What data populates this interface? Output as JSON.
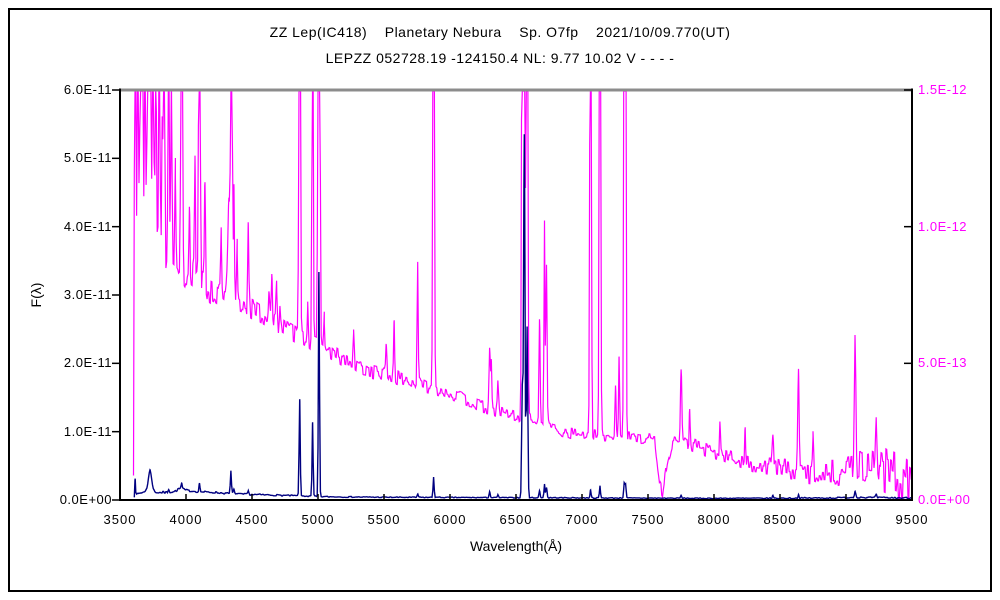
{
  "figure": {
    "title_line1": "ZZ Lep(IC418)    Planetary Nebura    Sp. O7fp    2021/10/09.770(UT)",
    "title_line2": "LEPZZ 052728.19 -124150.4 NL: 9.77 10.02 V - - - -"
  },
  "chart_data": {
    "type": "line",
    "title": "ZZ Lep(IC418) Planetary Nebura Sp. O7fp 2021/10/09.770(UT)",
    "subtitle": "LEPZZ 052728.19 -124150.4 NL: 9.77 10.02 V - - - -",
    "xlabel": "Wavelength(Å)",
    "ylabel_left": "F(λ)",
    "grid": false,
    "legend": "none",
    "axes": {
      "x": {
        "min": 3500,
        "max": 9500,
        "tick_values": [
          3500,
          4000,
          4500,
          5000,
          5500,
          6000,
          6500,
          7000,
          7500,
          8000,
          8500,
          9000,
          9500
        ],
        "tick_labels": [
          "3500",
          "4000",
          "4500",
          "5000",
          "5500",
          "6000",
          "6500",
          "7000",
          "7500",
          "8000",
          "8500",
          "9000",
          "9500"
        ]
      },
      "y_left": {
        "min": 0,
        "max": 6e-11,
        "unit": "1e-11",
        "color": "#000000",
        "tick_values": [
          6,
          5,
          4,
          3,
          2,
          1,
          0
        ],
        "tick_labels": [
          "6.0E-11",
          "5.0E-11",
          "4.0E-11",
          "3.0E-11",
          "2.0E-11",
          "1.0E-11",
          "0.0E+00"
        ]
      },
      "y_right": {
        "min": 0,
        "max": 1.5e-12,
        "unit": "1e-12",
        "color": "#ff00ff",
        "tick_values": [
          1.5,
          1.0,
          0.5,
          0
        ],
        "tick_labels": [
          "1.5E-12",
          "1.0E-12",
          "5.0E-13",
          "0.0E+00"
        ]
      }
    },
    "series": [
      {
        "name": "spectrum-right-axis-magenta",
        "color": "#ff00ff",
        "axis": "right",
        "axis_max": 1.5,
        "seed": 13,
        "range": [
          3602,
          9505
        ],
        "continuum": [
          [
            3602,
            0.05
          ],
          [
            3620,
            1.02
          ],
          [
            3700,
            1.0
          ],
          [
            3800,
            0.92
          ],
          [
            3900,
            0.88
          ],
          [
            4000,
            0.83
          ],
          [
            4150,
            0.78
          ],
          [
            4300,
            0.74
          ],
          [
            4450,
            0.71
          ],
          [
            4600,
            0.67
          ],
          [
            4750,
            0.63
          ],
          [
            4900,
            0.59
          ],
          [
            5050,
            0.55
          ],
          [
            5200,
            0.51
          ],
          [
            5350,
            0.48
          ],
          [
            5500,
            0.46
          ],
          [
            5650,
            0.44
          ],
          [
            5800,
            0.42
          ],
          [
            5950,
            0.4
          ],
          [
            6100,
            0.37
          ],
          [
            6250,
            0.34
          ],
          [
            6400,
            0.32
          ],
          [
            6550,
            0.3
          ],
          [
            6700,
            0.285
          ],
          [
            6850,
            0.25
          ],
          [
            7000,
            0.24
          ],
          [
            7150,
            0.235
          ],
          [
            7300,
            0.23
          ],
          [
            7450,
            0.228
          ],
          [
            7550,
            0.225
          ],
          [
            7585,
            0.06
          ],
          [
            7615,
            0.03
          ],
          [
            7650,
            0.15
          ],
          [
            7690,
            0.22
          ],
          [
            7850,
            0.2
          ],
          [
            8000,
            0.17
          ],
          [
            8150,
            0.15
          ],
          [
            8300,
            0.13
          ],
          [
            8450,
            0.12
          ],
          [
            8600,
            0.11
          ],
          [
            8750,
            0.1
          ],
          [
            8900,
            0.1
          ],
          [
            9050,
            0.115
          ],
          [
            9200,
            0.13
          ],
          [
            9320,
            0.1
          ],
          [
            9420,
            0.08
          ],
          [
            9505,
            0.05
          ]
        ],
        "noise": [
          [
            3605,
            0.09
          ],
          [
            3900,
            0.07
          ],
          [
            4300,
            0.05
          ],
          [
            4800,
            0.035
          ],
          [
            5300,
            0.03
          ],
          [
            5900,
            0.025
          ],
          [
            6500,
            0.022
          ],
          [
            7200,
            0.02
          ],
          [
            7800,
            0.025
          ],
          [
            8300,
            0.03
          ],
          [
            8800,
            0.045
          ],
          [
            9100,
            0.06
          ],
          [
            9350,
            0.09
          ],
          [
            9505,
            0.11
          ]
        ],
        "lines": [
          [
            3614,
            2.5,
            4
          ],
          [
            3636,
            1.6,
            4
          ],
          [
            3657,
            2.0,
            4
          ],
          [
            3670,
            1.3,
            4
          ],
          [
            3690,
            0.9,
            4
          ],
          [
            3712,
            2.0,
            4
          ],
          [
            3728,
            2.6,
            5
          ],
          [
            3750,
            1.9,
            4
          ],
          [
            3771,
            1.0,
            4
          ],
          [
            3798,
            1.8,
            4
          ],
          [
            3820,
            0.55,
            4
          ],
          [
            3835,
            1.7,
            4
          ],
          [
            3869,
            2.2,
            4
          ],
          [
            3889,
            0.75,
            4
          ],
          [
            3920,
            0.35,
            4
          ],
          [
            3967,
            2.2,
            5
          ],
          [
            4026,
            0.3,
            4
          ],
          [
            4068,
            0.5,
            4
          ],
          [
            4102,
            2.2,
            5
          ],
          [
            4144,
            0.35,
            4
          ],
          [
            4267,
            0.2,
            4
          ],
          [
            4325,
            0.35,
            8
          ],
          [
            4344,
            1.9,
            5
          ],
          [
            4363,
            0.4,
            4
          ],
          [
            4388,
            0.2,
            4
          ],
          [
            4471,
            0.35,
            4
          ],
          [
            4630,
            0.12,
            5
          ],
          [
            4650,
            0.15,
            4
          ],
          [
            4686,
            0.12,
            4
          ],
          [
            4711,
            0.1,
            4
          ],
          [
            4861,
            3.0,
            5
          ],
          [
            4922,
            0.15,
            4
          ],
          [
            4959,
            2.4,
            4
          ],
          [
            5007,
            3.4,
            6
          ],
          [
            5048,
            0.12,
            4
          ],
          [
            5270,
            0.1,
            4
          ],
          [
            5518,
            0.1,
            4
          ],
          [
            5577,
            0.2,
            4
          ],
          [
            5755,
            0.42,
            4
          ],
          [
            5876,
            2.6,
            5
          ],
          [
            6300,
            0.2,
            4
          ],
          [
            6312,
            0.18,
            4
          ],
          [
            6363,
            0.12,
            4
          ],
          [
            6548,
            2.2,
            5
          ],
          [
            6563,
            3.6,
            5
          ],
          [
            6584,
            2.6,
            5
          ],
          [
            6678,
            0.36,
            4
          ],
          [
            6716,
            0.75,
            4
          ],
          [
            6731,
            0.6,
            4
          ],
          [
            7065,
            2.8,
            5
          ],
          [
            7136,
            2.6,
            5
          ],
          [
            7254,
            0.2,
            4
          ],
          [
            7281,
            0.3,
            4
          ],
          [
            7320,
            2.3,
            4
          ],
          [
            7330,
            2.1,
            4
          ],
          [
            7751,
            0.27,
            5
          ],
          [
            7816,
            0.12,
            4
          ],
          [
            8045,
            0.12,
            4
          ],
          [
            8236,
            0.1,
            4
          ],
          [
            8446,
            0.14,
            5
          ],
          [
            8640,
            0.35,
            5
          ],
          [
            8750,
            0.12,
            4
          ],
          [
            9069,
            0.52,
            6
          ],
          [
            9229,
            0.2,
            6
          ]
        ]
      },
      {
        "name": "spectrum-left-axis-navy",
        "color": "#000080",
        "axis": "left",
        "axis_max": 6,
        "seed": 7,
        "range": [
          3608,
          9505
        ],
        "continuum": [
          [
            3608,
            0.04
          ],
          [
            3640,
            0.09
          ],
          [
            3680,
            0.12
          ],
          [
            3705,
            0.16
          ],
          [
            3730,
            0.24
          ],
          [
            3750,
            0.16
          ],
          [
            3775,
            0.11
          ],
          [
            3850,
            0.11
          ],
          [
            3910,
            0.12
          ],
          [
            3955,
            0.17
          ],
          [
            4010,
            0.14
          ],
          [
            4100,
            0.12
          ],
          [
            4220,
            0.11
          ],
          [
            4360,
            0.09
          ],
          [
            4500,
            0.08
          ],
          [
            4700,
            0.07
          ],
          [
            4880,
            0.06
          ],
          [
            5000,
            0.05
          ],
          [
            5200,
            0.045
          ],
          [
            5500,
            0.04
          ],
          [
            5900,
            0.038
          ],
          [
            6300,
            0.035
          ],
          [
            6700,
            0.034
          ],
          [
            7100,
            0.03
          ],
          [
            7500,
            0.028
          ],
          [
            7900,
            0.025
          ],
          [
            8400,
            0.025
          ],
          [
            8900,
            0.03
          ],
          [
            9100,
            0.04
          ],
          [
            9300,
            0.032
          ],
          [
            9505,
            0.03
          ]
        ],
        "noise": [
          [
            3608,
            0.02
          ],
          [
            3800,
            0.015
          ],
          [
            4300,
            0.012
          ],
          [
            5000,
            0.008
          ],
          [
            6000,
            0.006
          ],
          [
            7000,
            0.006
          ],
          [
            8000,
            0.006
          ],
          [
            9000,
            0.01
          ],
          [
            9505,
            0.012
          ]
        ],
        "lines": [
          [
            3615,
            0.28,
            3
          ],
          [
            3727,
            0.22,
            10
          ],
          [
            3869,
            0.05,
            4
          ],
          [
            3967,
            0.08,
            4
          ],
          [
            4102,
            0.12,
            4
          ],
          [
            4340,
            0.33,
            4
          ],
          [
            4363,
            0.08,
            4
          ],
          [
            4471,
            0.05,
            4
          ],
          [
            4861,
            1.42,
            4
          ],
          [
            4959,
            1.08,
            4
          ],
          [
            5007,
            3.28,
            4
          ],
          [
            5755,
            0.05,
            4
          ],
          [
            5876,
            0.3,
            4
          ],
          [
            6300,
            0.09,
            4
          ],
          [
            6363,
            0.04,
            4
          ],
          [
            6548,
            1.6,
            5
          ],
          [
            6563,
            5.3,
            5
          ],
          [
            6584,
            2.5,
            5
          ],
          [
            6678,
            0.1,
            4
          ],
          [
            6716,
            0.2,
            4
          ],
          [
            6731,
            0.15,
            4
          ],
          [
            7065,
            0.12,
            4
          ],
          [
            7136,
            0.18,
            4
          ],
          [
            7320,
            0.22,
            4
          ],
          [
            7330,
            0.2,
            4
          ],
          [
            7751,
            0.04,
            4
          ],
          [
            8446,
            0.04,
            4
          ],
          [
            8640,
            0.05,
            4
          ],
          [
            9069,
            0.09,
            5
          ],
          [
            9229,
            0.04,
            5
          ]
        ]
      }
    ],
    "frame_colors": {
      "top": "#8c8c8c",
      "sides_bottom": "#000000"
    }
  }
}
